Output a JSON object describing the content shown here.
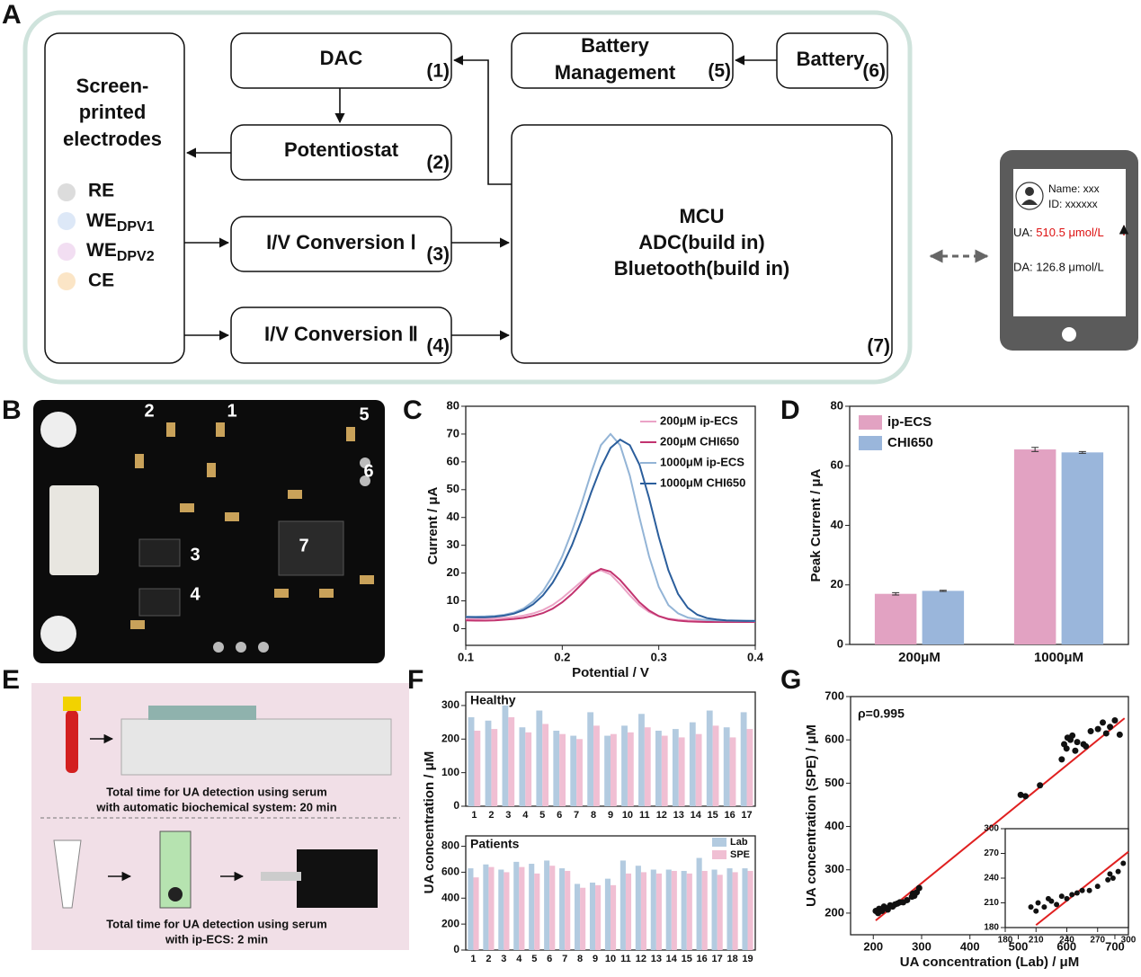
{
  "panel_labels": [
    "A",
    "B",
    "C",
    "D",
    "E",
    "F",
    "G"
  ],
  "diagram": {
    "electrodes": {
      "title_lines": [
        "Screen-",
        "printed",
        "electrodes"
      ],
      "legend": [
        {
          "text": "RE"
        },
        {
          "text": "WE",
          "sub": "DPV1"
        },
        {
          "text": "WE",
          "sub": "DPV2"
        },
        {
          "text": "CE"
        }
      ]
    },
    "blocks": [
      {
        "lines": [
          "DAC"
        ],
        "num": "(1)"
      },
      {
        "lines": [
          "Potentiostat"
        ],
        "num": "(2)"
      },
      {
        "lines": [
          "I/V Conversion Ⅰ"
        ],
        "num": "(3)"
      },
      {
        "lines": [
          "I/V Conversion Ⅱ"
        ],
        "num": "(4)"
      },
      {
        "lines": [
          "Battery",
          "Management"
        ],
        "num": "(5)"
      },
      {
        "lines": [
          "Battery"
        ],
        "num": "(6)"
      },
      {
        "lines": [
          "MCU",
          "ADC(build in)",
          "Bluetooth(build in)"
        ],
        "num": "(7)"
      }
    ],
    "phone": {
      "name": "Name: xxx",
      "id": "ID: xxxxxx",
      "ua_label": "UA:",
      "ua_value": "510.5 μmol/L",
      "da": "DA: 126.8 μmol/L"
    }
  },
  "board": {
    "labels": [
      "1",
      "2",
      "3",
      "4",
      "5",
      "6",
      "7"
    ]
  },
  "workflow": {
    "automatic": [
      "Total time for UA detection using serum",
      "with  automatic biochemical system: 20 min"
    ],
    "ip_ecs": [
      "Total time for UA detection using serum",
      "with  ip-ECS: 2 min"
    ]
  },
  "chart_data": [
    {
      "type": "line",
      "xlabel": "Potential / V",
      "ylabel": "Current / μA",
      "x": [
        0.1,
        0.11,
        0.12,
        0.13,
        0.14,
        0.15,
        0.16,
        0.17,
        0.18,
        0.19,
        0.2,
        0.21,
        0.22,
        0.23,
        0.24,
        0.25,
        0.26,
        0.27,
        0.28,
        0.29,
        0.3,
        0.31,
        0.32,
        0.33,
        0.34,
        0.35,
        0.36,
        0.37,
        0.38,
        0.39,
        0.4
      ],
      "xlim": [
        0.1,
        0.4
      ],
      "xticks": [
        0.1,
        0.2,
        0.3,
        0.4
      ],
      "ylim": [
        -6,
        80
      ],
      "yticks": [
        0,
        10,
        20,
        30,
        40,
        50,
        60,
        70,
        80
      ],
      "legend": "upper right",
      "series": [
        {
          "name": "200μM ip-ECS",
          "color": "#eba3c6",
          "values": [
            3.5,
            3.5,
            3.6,
            3.7,
            3.9,
            4.2,
            4.7,
            5.5,
            6.7,
            8.5,
            11,
            14,
            17,
            20,
            21,
            19.5,
            16,
            12,
            8.5,
            6,
            4.5,
            3.6,
            3.2,
            3,
            2.9,
            2.8,
            2.7,
            2.7,
            2.6,
            2.6,
            2.6
          ]
        },
        {
          "name": "200μM CHI650",
          "color": "#c2336f",
          "values": [
            3,
            2.9,
            2.9,
            3,
            3.2,
            3.5,
            3.9,
            4.6,
            5.6,
            7.2,
            9.5,
            12.5,
            16,
            19.5,
            21.5,
            20.5,
            17.5,
            13.5,
            9.5,
            6.5,
            4.5,
            3.4,
            2.9,
            2.6,
            2.5,
            2.4,
            2.4,
            2.4,
            2.4,
            2.4,
            2.4
          ]
        },
        {
          "name": "1000μM ip-ECS",
          "color": "#93b4d6",
          "values": [
            4.3,
            4.3,
            4.4,
            4.6,
            5,
            5.8,
            7.3,
            9.8,
            13.5,
            19,
            26,
            35,
            45,
            56,
            66,
            70,
            66,
            55,
            40,
            26,
            15,
            8.5,
            5.5,
            4,
            3.4,
            3.1,
            3,
            2.9,
            2.8,
            2.8,
            2.7
          ]
        },
        {
          "name": "1000μM CHI650",
          "color": "#2b5e9c",
          "values": [
            4.2,
            4.1,
            4.1,
            4.3,
            4.7,
            5.4,
            6.7,
            8.8,
            12,
            16.5,
            22.5,
            30,
            39,
            49,
            58,
            65,
            68,
            66,
            59,
            47,
            33,
            21,
            12.5,
            7.5,
            5,
            3.8,
            3.3,
            3,
            2.9,
            2.8,
            2.8
          ]
        }
      ]
    },
    {
      "type": "bar",
      "ylabel": "Peak Current / μA",
      "categories": [
        "200μM",
        "1000μM"
      ],
      "ylim": [
        0,
        80
      ],
      "yticks": [
        0,
        20,
        40,
        60,
        80
      ],
      "legend": "upper left",
      "series": [
        {
          "name": "ip-ECS",
          "color": "#e2a2c2",
          "values": [
            17,
            65.5
          ],
          "errors": [
            0.4,
            0.7
          ]
        },
        {
          "name": "CHI650",
          "color": "#9ab6db",
          "values": [
            18,
            64.5
          ],
          "errors": [
            0.2,
            0.3
          ]
        }
      ]
    },
    {
      "type": "bar",
      "title": "Healthy",
      "ylabel": "UA concentration / μM",
      "categories": [
        "1",
        "2",
        "3",
        "4",
        "5",
        "6",
        "7",
        "8",
        "9",
        "10",
        "11",
        "12",
        "13",
        "14",
        "15",
        "16",
        "17"
      ],
      "ylim": [
        0,
        340
      ],
      "yticks": [
        0,
        100,
        200,
        300
      ],
      "series": [
        {
          "color": "#b3cbe0",
          "values": [
            265,
            255,
            300,
            235,
            285,
            225,
            210,
            280,
            210,
            240,
            275,
            225,
            230,
            250,
            285,
            235,
            280
          ]
        },
        {
          "color": "#f0bfd3",
          "values": [
            225,
            230,
            265,
            220,
            245,
            215,
            200,
            240,
            215,
            220,
            235,
            210,
            205,
            215,
            240,
            205,
            230
          ]
        }
      ]
    },
    {
      "type": "bar",
      "title": "Patients",
      "categories": [
        "1",
        "2",
        "3",
        "4",
        "5",
        "6",
        "7",
        "8",
        "9",
        "10",
        "11",
        "12",
        "13",
        "14",
        "15",
        "16",
        "17",
        "18",
        "19"
      ],
      "ylim": [
        0,
        880
      ],
      "yticks": [
        0,
        200,
        400,
        600,
        800
      ],
      "legend": "upper right",
      "series": [
        {
          "name": "Lab",
          "color": "#b3cbe0",
          "values": [
            630,
            660,
            620,
            680,
            665,
            690,
            630,
            510,
            520,
            550,
            690,
            650,
            620,
            620,
            610,
            710,
            620,
            630,
            630
          ]
        },
        {
          "name": "SPE",
          "color": "#f0bfd3",
          "values": [
            560,
            640,
            600,
            640,
            590,
            650,
            610,
            480,
            500,
            500,
            590,
            600,
            590,
            610,
            590,
            610,
            580,
            600,
            610
          ]
        }
      ]
    },
    {
      "type": "scatter",
      "text": "ρ=0.995",
      "xlabel": "UA concentration (Lab) / μM",
      "ylabel": "UA concentration (SPE) / μM",
      "color": "#111111",
      "x": [
        205,
        210,
        212,
        218,
        222,
        225,
        230,
        235,
        240,
        245,
        250,
        255,
        262,
        270,
        280,
        282,
        285,
        290,
        295,
        505,
        515,
        545,
        590,
        595,
        600,
        602,
        608,
        612,
        618,
        622,
        635,
        640,
        650,
        665,
        675,
        682,
        690,
        700,
        710
      ],
      "values": [
        205,
        200,
        210,
        205,
        215,
        212,
        208,
        218,
        215,
        220,
        222,
        225,
        225,
        230,
        238,
        245,
        240,
        248,
        258,
        473,
        470,
        495,
        555,
        590,
        580,
        605,
        600,
        610,
        575,
        595,
        590,
        585,
        620,
        625,
        640,
        615,
        630,
        645,
        612
      ],
      "xlim": [
        153,
        728
      ],
      "xticks": [
        200,
        300,
        400,
        500,
        600,
        700
      ],
      "ylim": [
        150,
        700
      ],
      "yticks": [
        200,
        300,
        400,
        500,
        600,
        700
      ],
      "fit": {
        "color": "#e02020",
        "x": [
          205,
          720
        ],
        "values": [
          183,
          650
        ]
      },
      "inset": {
        "xlim": [
          180,
          300
        ],
        "xticks": [
          180,
          210,
          240,
          270,
          300
        ],
        "ylim": [
          180,
          300
        ],
        "yticks": [
          180,
          210,
          240,
          270,
          300
        ],
        "fit": {
          "x": [
            210,
            300
          ],
          "values": [
            183,
            272
          ]
        }
      }
    }
  ]
}
